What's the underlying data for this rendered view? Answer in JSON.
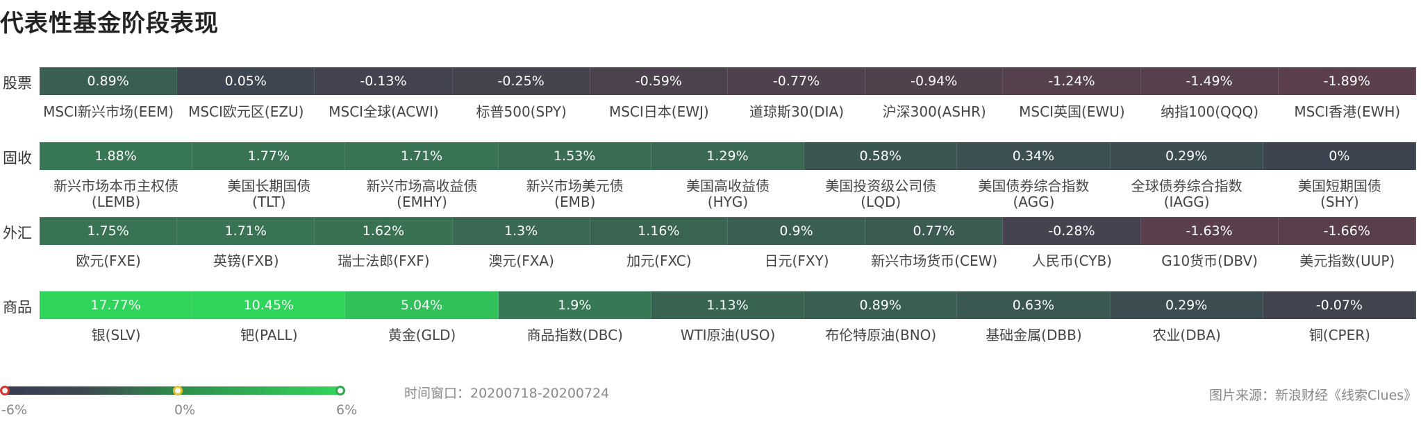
{
  "title": "代表性基金阶段表现",
  "chart_data": {
    "type": "heatmap",
    "title": "代表性基金阶段表现",
    "unit": "%",
    "color_scale": {
      "min": -6,
      "mid": 0,
      "max": 6,
      "min_label": "-6%",
      "mid_label": "0%",
      "max_label": "6%",
      "colors": {
        "negative": "#7a3a48",
        "zero": "#3d4450",
        "positive": "#2fd55a"
      }
    },
    "rows": [
      {
        "label": "股票",
        "items": [
          {
            "name": "MSCI新兴市场(EEM)",
            "value": 0.89,
            "display": "0.89%"
          },
          {
            "name": "MSCI欧元区(EZU)",
            "value": 0.05,
            "display": "0.05%"
          },
          {
            "name": "MSCI全球(ACWI)",
            "value": -0.13,
            "display": "-0.13%"
          },
          {
            "name": "标普500(SPY)",
            "value": -0.25,
            "display": "-0.25%"
          },
          {
            "name": "MSCI日本(EWJ)",
            "value": -0.59,
            "display": "-0.59%"
          },
          {
            "name": "道琼斯30(DIA)",
            "value": -0.77,
            "display": "-0.77%"
          },
          {
            "name": "沪深300(ASHR)",
            "value": -0.94,
            "display": "-0.94%"
          },
          {
            "name": "MSCI英国(EWU)",
            "value": -1.24,
            "display": "-1.24%"
          },
          {
            "name": "纳指100(QQQ)",
            "value": -1.49,
            "display": "-1.49%"
          },
          {
            "name": "MSCI香港(EWH)",
            "value": -1.89,
            "display": "-1.89%"
          }
        ]
      },
      {
        "label": "固收",
        "items": [
          {
            "name": "新兴市场本币主权债\n(LEMB)",
            "value": 1.88,
            "display": "1.88%"
          },
          {
            "name": "美国长期国债\n(TLT)",
            "value": 1.77,
            "display": "1.77%"
          },
          {
            "name": "新兴市场高收益债\n(EMHY)",
            "value": 1.71,
            "display": "1.71%"
          },
          {
            "name": "新兴市场美元债\n(EMB)",
            "value": 1.53,
            "display": "1.53%"
          },
          {
            "name": "美国高收益债\n(HYG)",
            "value": 1.29,
            "display": "1.29%"
          },
          {
            "name": "美国投资级公司债\n(LQD)",
            "value": 0.58,
            "display": "0.58%"
          },
          {
            "name": "美国债券综合指数\n(AGG)",
            "value": 0.34,
            "display": "0.34%"
          },
          {
            "name": "全球债券综合指数\n(IAGG)",
            "value": 0.29,
            "display": "0.29%"
          },
          {
            "name": "美国短期国债\n(SHY)",
            "value": 0,
            "display": "0%"
          }
        ]
      },
      {
        "label": "外汇",
        "items": [
          {
            "name": "欧元(FXE)",
            "value": 1.75,
            "display": "1.75%"
          },
          {
            "name": "英镑(FXB)",
            "value": 1.71,
            "display": "1.71%"
          },
          {
            "name": "瑞士法郎(FXF)",
            "value": 1.62,
            "display": "1.62%"
          },
          {
            "name": "澳元(FXA)",
            "value": 1.3,
            "display": "1.3%"
          },
          {
            "name": "加元(FXC)",
            "value": 1.16,
            "display": "1.16%"
          },
          {
            "name": "日元(FXY)",
            "value": 0.9,
            "display": "0.9%"
          },
          {
            "name": "新兴市场货币(CEW)",
            "value": 0.77,
            "display": "0.77%"
          },
          {
            "name": "人民币(CYB)",
            "value": -0.28,
            "display": "-0.28%"
          },
          {
            "name": "G10货币(DBV)",
            "value": -1.63,
            "display": "-1.63%"
          },
          {
            "name": "美元指数(UUP)",
            "value": -1.66,
            "display": "-1.66%"
          }
        ]
      },
      {
        "label": "商品",
        "items": [
          {
            "name": "银(SLV)",
            "value": 17.77,
            "display": "17.77%"
          },
          {
            "name": "钯(PALL)",
            "value": 10.45,
            "display": "10.45%"
          },
          {
            "name": "黄金(GLD)",
            "value": 5.04,
            "display": "5.04%"
          },
          {
            "name": "商品指数(DBC)",
            "value": 1.9,
            "display": "1.9%"
          },
          {
            "name": "WTI原油(USO)",
            "value": 1.13,
            "display": "1.13%"
          },
          {
            "name": "布伦特原油(BNO)",
            "value": 0.89,
            "display": "0.89%"
          },
          {
            "name": "基础金属(DBB)",
            "value": 0.63,
            "display": "0.63%"
          },
          {
            "name": "农业(DBA)",
            "value": 0.29,
            "display": "0.29%"
          },
          {
            "name": "铜(CPER)",
            "value": -0.07,
            "display": "-0.07%"
          }
        ]
      }
    ]
  },
  "footer": {
    "time_window": "时间窗口：20200718-20200724",
    "source": "图片来源：新浪财经《线索Clues》"
  }
}
